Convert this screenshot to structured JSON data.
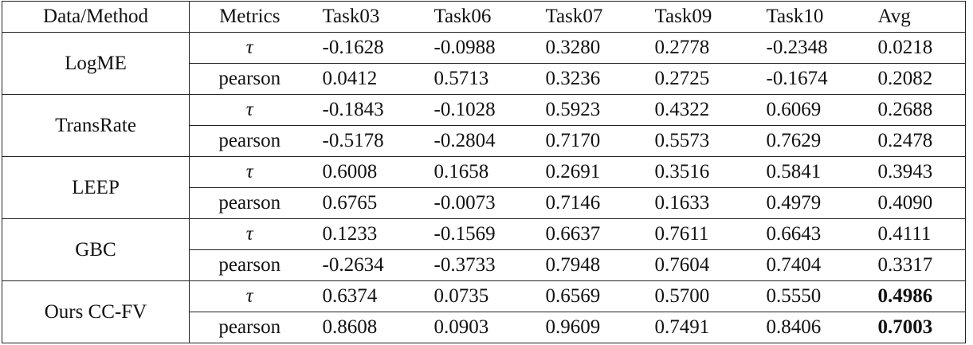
{
  "table": {
    "header": [
      "Data/Method",
      "Metrics",
      "Task03",
      "Task06",
      "Task07",
      "Task09",
      "Task10",
      "Avg"
    ],
    "groups": [
      {
        "method": "LogME",
        "rows": [
          [
            "τ",
            "-0.1628",
            "-0.0988",
            "0.3280",
            "0.2778",
            "-0.2348",
            "0.0218"
          ],
          [
            "pearson",
            "0.0412",
            "0.5713",
            "0.3236",
            "0.2725",
            "-0.1674",
            "0.2082"
          ]
        ]
      },
      {
        "method": "TransRate",
        "rows": [
          [
            "τ",
            "-0.1843",
            "-0.1028",
            "0.5923",
            "0.4322",
            "0.6069",
            "0.2688"
          ],
          [
            "pearson",
            "-0.5178",
            "-0.2804",
            "0.7170",
            "0.5573",
            "0.7629",
            "0.2478"
          ]
        ]
      },
      {
        "method": "LEEP",
        "rows": [
          [
            "τ",
            "0.6008",
            "0.1658",
            "0.2691",
            "0.3516",
            "0.5841",
            "0.3943"
          ],
          [
            "pearson",
            "0.6765",
            "-0.0073",
            "0.7146",
            "0.1633",
            "0.4979",
            "0.4090"
          ]
        ]
      },
      {
        "method": "GBC",
        "rows": [
          [
            "τ",
            "0.1233",
            "-0.1569",
            "0.6637",
            "0.7611",
            "0.6643",
            "0.4111"
          ],
          [
            "pearson",
            "-0.2634",
            "-0.3733",
            "0.7948",
            "0.7604",
            "0.7404",
            "0.3317"
          ]
        ]
      },
      {
        "method": "Ours CC-FV",
        "rows": [
          [
            "τ",
            "0.6374",
            "0.0735",
            "0.6569",
            "0.5700",
            "0.5550",
            "0.4986"
          ],
          [
            "pearson",
            "0.8608",
            "0.0903",
            "0.9609",
            "0.7491",
            "0.8406",
            "0.7003"
          ]
        ]
      }
    ]
  }
}
